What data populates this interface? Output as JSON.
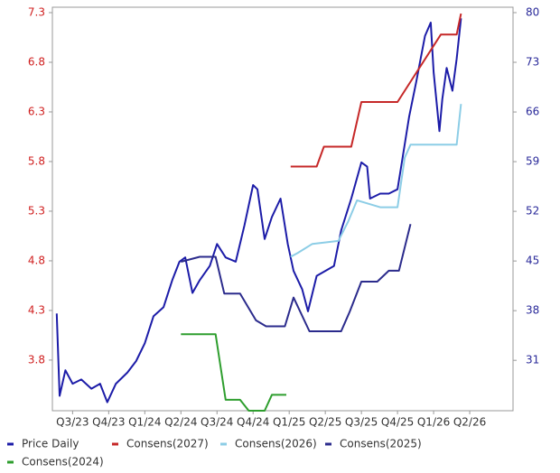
{
  "chart_data": {
    "type": "line",
    "xlim": [
      2023.36,
      2026.55
    ],
    "xticks": [
      {
        "value": 2023.5,
        "label": "Q3/23"
      },
      {
        "value": 2023.75,
        "label": "Q4/23"
      },
      {
        "value": 2024.0,
        "label": "Q1/24"
      },
      {
        "value": 2024.25,
        "label": "Q2/24"
      },
      {
        "value": 2024.5,
        "label": "Q3/24"
      },
      {
        "value": 2024.75,
        "label": "Q4/24"
      },
      {
        "value": 2025.0,
        "label": "Q1/25"
      },
      {
        "value": 2025.25,
        "label": "Q2/25"
      },
      {
        "value": 2025.5,
        "label": "Q3/25"
      },
      {
        "value": 2025.75,
        "label": "Q4/25"
      },
      {
        "value": 2026.0,
        "label": "Q1/26"
      },
      {
        "value": 2026.25,
        "label": "Q2/26"
      }
    ],
    "ylim": [
      3.29,
      7.3
    ],
    "yticks": [
      3.8,
      4.3,
      4.8,
      5.3,
      5.8,
      6.3,
      6.8,
      7.3
    ],
    "ycolor": "#d02020",
    "y2lim": [
      23.9,
      80
    ],
    "y2ticks": [
      31,
      38,
      45,
      52,
      59,
      66,
      73,
      80
    ],
    "y2color": "#2a2a9a",
    "legend": "bottom",
    "series": [
      {
        "name": "Price Daily",
        "color": "#1c1ca8",
        "axis": "y2",
        "x": [
          2023.39,
          2023.41,
          2023.45,
          2023.5,
          2023.56,
          2023.63,
          2023.69,
          2023.74,
          2023.8,
          2023.88,
          2023.94,
          2024.0,
          2024.06,
          2024.13,
          2024.19,
          2024.24,
          2024.28,
          2024.33,
          2024.38,
          2024.45,
          2024.5,
          2024.56,
          2024.63,
          2024.69,
          2024.75,
          2024.78,
          2024.83,
          2024.88,
          2024.94,
          2024.99,
          2025.03,
          2025.09,
          2025.13,
          2025.19,
          2025.25,
          2025.31,
          2025.36,
          2025.43,
          2025.5,
          2025.54,
          2025.56,
          2025.63,
          2025.69,
          2025.75,
          2025.78,
          2025.83,
          2025.88,
          2025.94,
          2025.98,
          2026.0,
          2026.04,
          2026.06,
          2026.09,
          2026.13,
          2026.16,
          2026.19
        ],
        "values": [
          37.6,
          26.0,
          29.6,
          27.7,
          28.3,
          27.0,
          27.7,
          25.1,
          27.7,
          29.3,
          30.9,
          33.4,
          37.2,
          38.5,
          42.3,
          44.9,
          45.5,
          40.5,
          42.3,
          44.3,
          47.4,
          45.5,
          44.9,
          50.0,
          55.7,
          55.1,
          48.1,
          51.2,
          53.8,
          47.4,
          43.6,
          41.0,
          37.9,
          42.9,
          43.6,
          44.3,
          49.3,
          53.8,
          58.9,
          58.3,
          53.8,
          54.5,
          54.5,
          55.1,
          58.9,
          65.3,
          70.3,
          76.7,
          78.6,
          71.6,
          63.3,
          67.8,
          72.2,
          69.0,
          73.5,
          79.2
        ]
      },
      {
        "name": "Consens(2027)",
        "color": "#c62828",
        "x": [
          2025.01,
          2025.19,
          2025.24,
          2025.43,
          2025.5,
          2025.75,
          2026.05,
          2026.16,
          2026.19
        ],
        "values": [
          5.75,
          5.75,
          5.95,
          5.95,
          6.4,
          6.4,
          7.08,
          7.08,
          7.29
        ]
      },
      {
        "name": "Consens(2026)",
        "color": "#8ccde6",
        "x": [
          2025.01,
          2025.06,
          2025.16,
          2025.34,
          2025.41,
          2025.47,
          2025.63,
          2025.75,
          2025.8,
          2025.84,
          2026.0,
          2026.16,
          2026.19
        ],
        "values": [
          4.84,
          4.88,
          4.97,
          5.0,
          5.2,
          5.41,
          5.34,
          5.34,
          5.84,
          5.97,
          5.97,
          5.97,
          6.38
        ]
      },
      {
        "name": "Consens(2025)",
        "color": "#2b2b8c",
        "x": [
          2024.25,
          2024.38,
          2024.49,
          2024.55,
          2024.66,
          2024.77,
          2024.84,
          2024.97,
          2025.03,
          2025.14,
          2025.36,
          2025.42,
          2025.5,
          2025.61,
          2025.69,
          2025.76,
          2025.84
        ],
        "values": [
          4.79,
          4.84,
          4.84,
          4.47,
          4.47,
          4.2,
          4.14,
          4.14,
          4.43,
          4.09,
          4.09,
          4.29,
          4.59,
          4.59,
          4.7,
          4.7,
          5.17
        ]
      },
      {
        "name": "Consens(2024)",
        "color": "#2e9e2e",
        "x": [
          2024.25,
          2024.49,
          2024.56,
          2024.66,
          2024.72,
          2024.83,
          2024.88,
          2024.98
        ],
        "values": [
          4.06,
          4.06,
          3.4,
          3.4,
          3.29,
          3.29,
          3.45,
          3.45
        ]
      }
    ]
  }
}
